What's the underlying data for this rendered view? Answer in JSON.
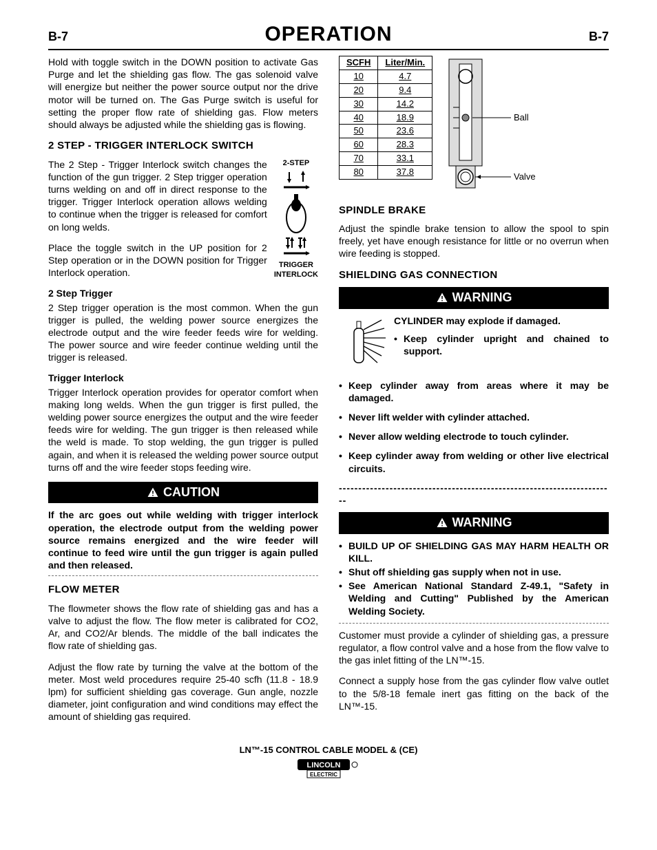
{
  "header": {
    "left": "B-7",
    "title": "OPERATION",
    "right": "B-7"
  },
  "left_col": {
    "intro_para": "Hold with toggle switch in the DOWN position to activate Gas Purge and let the shielding gas flow. The gas solenoid valve will energize but neither the power source output nor the drive motor will be turned on. The Gas Purge switch is useful for setting the proper flow rate of shielding gas. Flow meters should always be adjusted while the shielding gas is flowing.",
    "section1_title": "2 STEP - TRIGGER INTERLOCK SWITCH",
    "switch_labels": {
      "top": "2-STEP",
      "bottom_l1": "TRIGGER",
      "bottom_l2": "INTERLOCK"
    },
    "section1_p1": "The 2 Step - Trigger Interlock switch changes the function of the gun trigger. 2 Step trigger operation turns welding on and off  in direct response to the trigger. Trigger Interlock operation allows welding to continue when the trigger is released for comfort on long welds.",
    "section1_p2": "Place the toggle switch in the UP position for 2 Step operation or in the DOWN position for Trigger Interlock operation.",
    "sub1_title": "2 Step Trigger",
    "sub1_body": "2 Step trigger operation is the most common. When the gun trigger is pulled, the welding power source energizes the electrode output and the wire feeder feeds wire for welding. The power source and wire feeder continue welding until the trigger is released.",
    "sub2_title": "Trigger Interlock",
    "sub2_body": "Trigger Interlock operation provides for operator comfort when making long welds.  When the gun trigger is first pulled, the welding power source energizes the output and the wire feeder feeds wire for welding. The gun trigger is then released while the weld is made. To stop welding, the gun trigger is pulled again, and when it is released the welding power source output turns off and the wire feeder stops feeding wire.",
    "caution_label": "CAUTION",
    "caution_body": "If the arc goes out while welding with trigger interlock operation, the electrode output from the welding power source remains energized and the wire feeder will continue to feed wire until the gun trigger is again pulled and then released.",
    "section2_title": "FLOW METER",
    "section2_p1": "The flowmeter shows the flow rate of shielding gas and has a valve to adjust the flow. The flow meter is calibrated for CO2, Ar, and CO2/Ar blends. The middle of the ball indicates the flow rate of shielding gas.",
    "section2_p2": "Adjust the flow rate by turning the valve at the bottom of the meter. Most weld procedures require 25-40 scfh (11.8 - 18.9 lpm) for sufficient shielding gas coverage. Gun angle, nozzle diameter, joint configuration and wind conditions may effect the amount of shielding gas required."
  },
  "right_col": {
    "table": {
      "headers": [
        "SCFH",
        "Liter/Min."
      ],
      "rows": [
        [
          "10",
          "4.7"
        ],
        [
          "20",
          "9.4"
        ],
        [
          "30",
          "14.2"
        ],
        [
          "40",
          "18.9"
        ],
        [
          "50",
          "23.6"
        ],
        [
          "60",
          "28.3"
        ],
        [
          "70",
          "33.1"
        ],
        [
          "80",
          "37.8"
        ]
      ]
    },
    "meter_labels": {
      "ball": "Ball",
      "valve": "Valve"
    },
    "section3_title": "SPINDLE BRAKE",
    "section3_body": "Adjust the spindle brake tension to allow the spool to spin freely, yet have enough resistance for little or no overrun when wire feeding is stopped.",
    "section4_title": "SHIELDING GAS CONNECTION",
    "warning_label": "WARNING",
    "warn1_lead": "CYLINDER may explode if damaged.",
    "warn1_first_bullet": "Keep cylinder upright and chained to support.",
    "warn1_bullets": [
      "Keep cylinder away from areas where it may be damaged.",
      "Never lift welder with cylinder attached.",
      "Never allow welding electrode to touch cylinder.",
      "Keep cylinder away from welding or other live electrical circuits."
    ],
    "warn2_bullets": [
      "BUILD UP OF SHIELDING GAS MAY HARM HEALTH OR KILL.",
      "Shut off shielding gas supply when not in use.",
      "See American National Standard Z-49.1, \"Safety in Welding and Cutting\" Published by the American Welding Society."
    ],
    "after_p1": "Customer must provide a cylinder of shielding gas, a pressure regulator, a flow control valve and a hose from the flow valve to the gas inlet fitting of the LN™-15.",
    "after_p2": "Connect a supply hose from the gas cylinder flow valve outlet to the 5/8-18 female inert gas fitting on the back of the LN™-15."
  },
  "footer": {
    "line": "LN™-15 CONTROL CABLE MODEL & (CE)",
    "brand_top": "LINCOLN",
    "brand_bottom": "ELECTRIC"
  }
}
